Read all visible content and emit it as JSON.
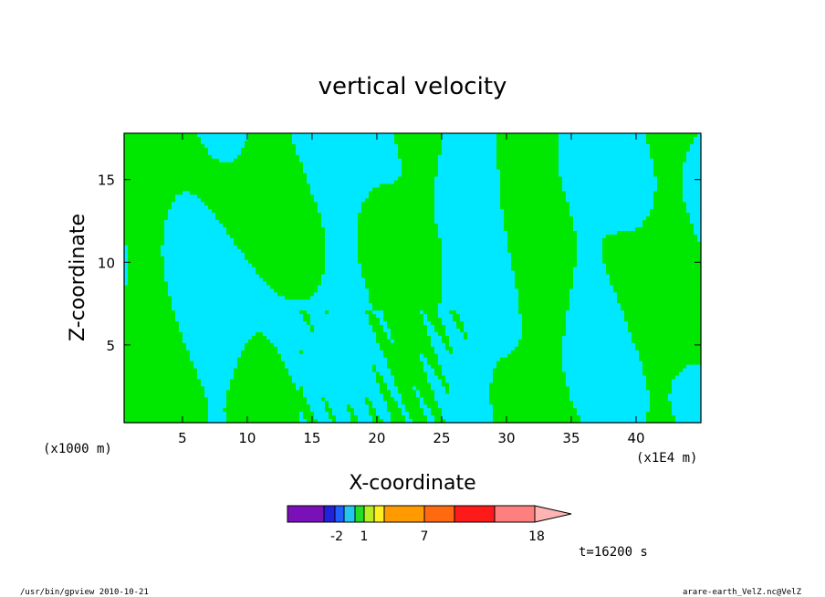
{
  "chart_data": {
    "type": "heatmap",
    "title": "vertical velocity",
    "xlabel": "X-coordinate",
    "ylabel": "Z-coordinate",
    "x_unit_left": "(x1000 m)",
    "x_unit_right": "(x1E4 m)",
    "xlim": [
      0.5,
      45
    ],
    "ylim": [
      0.3,
      17.8
    ],
    "x_ticks": [
      5,
      10,
      15,
      20,
      25,
      30,
      35,
      40
    ],
    "y_ticks": [
      5,
      10,
      15
    ],
    "colorbar": {
      "colors": [
        "#7a10b8",
        "#2222dd",
        "#1f5fff",
        "#22c6ee",
        "#22dd22",
        "#b6ee22",
        "#ffee22",
        "#ff9a00",
        "#ff6a10",
        "#ff1a1a",
        "#ff7f7f",
        "#ffb3b3"
      ],
      "tick_labels": [
        "-2",
        "1",
        "7",
        "18"
      ],
      "extend": "max"
    },
    "field": {
      "nx": 45,
      "nz": 18,
      "cyan_color": "#00e8ff",
      "green_color": "#00e800",
      "dominant_levels": [
        "negative (cyan)",
        "positive (green)"
      ]
    },
    "time_label": "t=16200 s"
  },
  "footer": {
    "left": "/usr/bin/gpview   2010-10-21",
    "right": "arare-earth_VelZ.nc@VelZ"
  }
}
